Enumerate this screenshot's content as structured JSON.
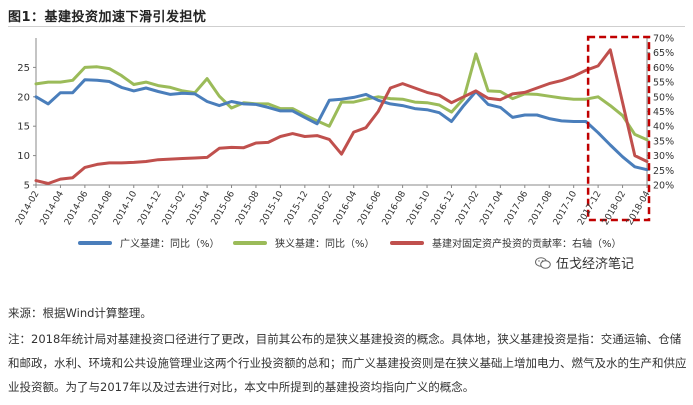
{
  "figure_title": "图1：基建投资加速下滑引发担忧",
  "source": "来源：根据Wind计算整理。",
  "note": "注：2018年统计局对基建投资口径进行了更改，目前其公布的是狭义基建投资的概念。具体地，狭义基建投资是指：交通运输、仓储和邮政，水利、环境和公共设施管理业这两个行业投资额的总和；而广义基建投资则是在狭义基础上增加电力、燃气及水的生产和供应业投资额。为了与2017年以及过去进行对比，本文中所提到的基建投资均指向广义的概念。",
  "watermark": "伍戈经济笔记",
  "colors": {
    "broad": "#4a7ebb",
    "narrow": "#9bbb59",
    "contrib": "#c0504d",
    "highlight": "#c00000"
  },
  "chart_data": {
    "type": "line",
    "title": "",
    "x": [
      "2014-02",
      "2014-03",
      "2014-04",
      "2014-05",
      "2014-06",
      "2014-07",
      "2014-08",
      "2014-09",
      "2014-10",
      "2014-11",
      "2014-12",
      "2015-01",
      "2015-02",
      "2015-03",
      "2015-04",
      "2015-05",
      "2015-06",
      "2015-07",
      "2015-08",
      "2015-09",
      "2015-10",
      "2015-11",
      "2015-12",
      "2016-01",
      "2016-02",
      "2016-03",
      "2016-04",
      "2016-05",
      "2016-06",
      "2016-07",
      "2016-08",
      "2016-09",
      "2016-10",
      "2016-11",
      "2016-12",
      "2017-01",
      "2017-02",
      "2017-03",
      "2017-04",
      "2017-05",
      "2017-06",
      "2017-07",
      "2017-08",
      "2017-09",
      "2017-10",
      "2017-11",
      "2017-12",
      "2018-01",
      "2018-02",
      "2018-03",
      "2018-04"
    ],
    "xtick_labels": [
      "2014-02",
      "2014-04",
      "2014-06",
      "2014-08",
      "2014-10",
      "2014-12",
      "2015-02",
      "2015-04",
      "2015-06",
      "2015-08",
      "2015-10",
      "2015-12",
      "2016-02",
      "2016-04",
      "2016-06",
      "2016-08",
      "2016-10",
      "2016-12",
      "2017-02",
      "2017-04",
      "2017-06",
      "2017-08",
      "2017-10",
      "2017-12",
      "2018-02",
      "2018-04"
    ],
    "y_left": {
      "lim": [
        5,
        30
      ],
      "ticks": [
        5,
        10,
        15,
        20,
        25
      ]
    },
    "y_right": {
      "lim": [
        20,
        70
      ],
      "ticks": [
        "20%",
        "25%",
        "30%",
        "35%",
        "40%",
        "45%",
        "50%",
        "55%",
        "60%",
        "65%",
        "70%"
      ]
    },
    "series": [
      {
        "name": "广义基建：同比（%）",
        "axis": "left",
        "color_key": "broad",
        "values": [
          20,
          18.8,
          20.7,
          20.7,
          22.9,
          22.8,
          22.6,
          21.6,
          21,
          21.5,
          20.9,
          20.4,
          20.6,
          20.5,
          19.2,
          18.5,
          19.2,
          18.8,
          18.7,
          18.2,
          17.6,
          17.6,
          16.5,
          15.4,
          19.4,
          19.6,
          19.9,
          20.4,
          19.4,
          18.8,
          18.5,
          18,
          17.8,
          17.3,
          15.8,
          18.5,
          20.9,
          18.7,
          18.2,
          16.5,
          16.9,
          16.9,
          16.3,
          15.9,
          15.8,
          15.8,
          13.9,
          11.8,
          9.8,
          8.1,
          7.6
        ]
      },
      {
        "name": "狭义基建：同比（%）",
        "axis": "left",
        "color_key": "narrow",
        "values": [
          22.2,
          22.5,
          22.5,
          22.8,
          25,
          25.1,
          24.8,
          23.6,
          22.1,
          22.5,
          21.9,
          21.6,
          21,
          20.7,
          23.1,
          20.1,
          18.1,
          19,
          18.8,
          18.8,
          18,
          18,
          16.9,
          15.9,
          15,
          19.1,
          19.1,
          19.6,
          20,
          19.7,
          19.6,
          19.1,
          19,
          18.6,
          17.4,
          19.7,
          27.3,
          21,
          20.9,
          19.7,
          20.5,
          20.4,
          20.1,
          19.8,
          19.6,
          19.6,
          20,
          18.5,
          16.8,
          13.6,
          12.7
        ]
      },
      {
        "name": "基建对固定资产投资的贡献率：右轴（%）",
        "axis": "right",
        "color_key": "contrib",
        "values": [
          21.5,
          20.5,
          22,
          22.5,
          26,
          27,
          27.5,
          27.5,
          27.7,
          28,
          28.6,
          28.8,
          29,
          29.2,
          29.4,
          32.5,
          32.8,
          32.7,
          34.3,
          34.5,
          36.5,
          37.5,
          36.5,
          36.8,
          35.5,
          30.5,
          38,
          39.5,
          45,
          53,
          54.5,
          53,
          51.5,
          50.5,
          48,
          50,
          52,
          49.5,
          49,
          51,
          51.5,
          53,
          54.5,
          55.5,
          57,
          59,
          60.5,
          66,
          48,
          30,
          28
        ]
      }
    ],
    "highlight_box": {
      "x_from": "2017-12",
      "x_to": "2018-04"
    }
  }
}
